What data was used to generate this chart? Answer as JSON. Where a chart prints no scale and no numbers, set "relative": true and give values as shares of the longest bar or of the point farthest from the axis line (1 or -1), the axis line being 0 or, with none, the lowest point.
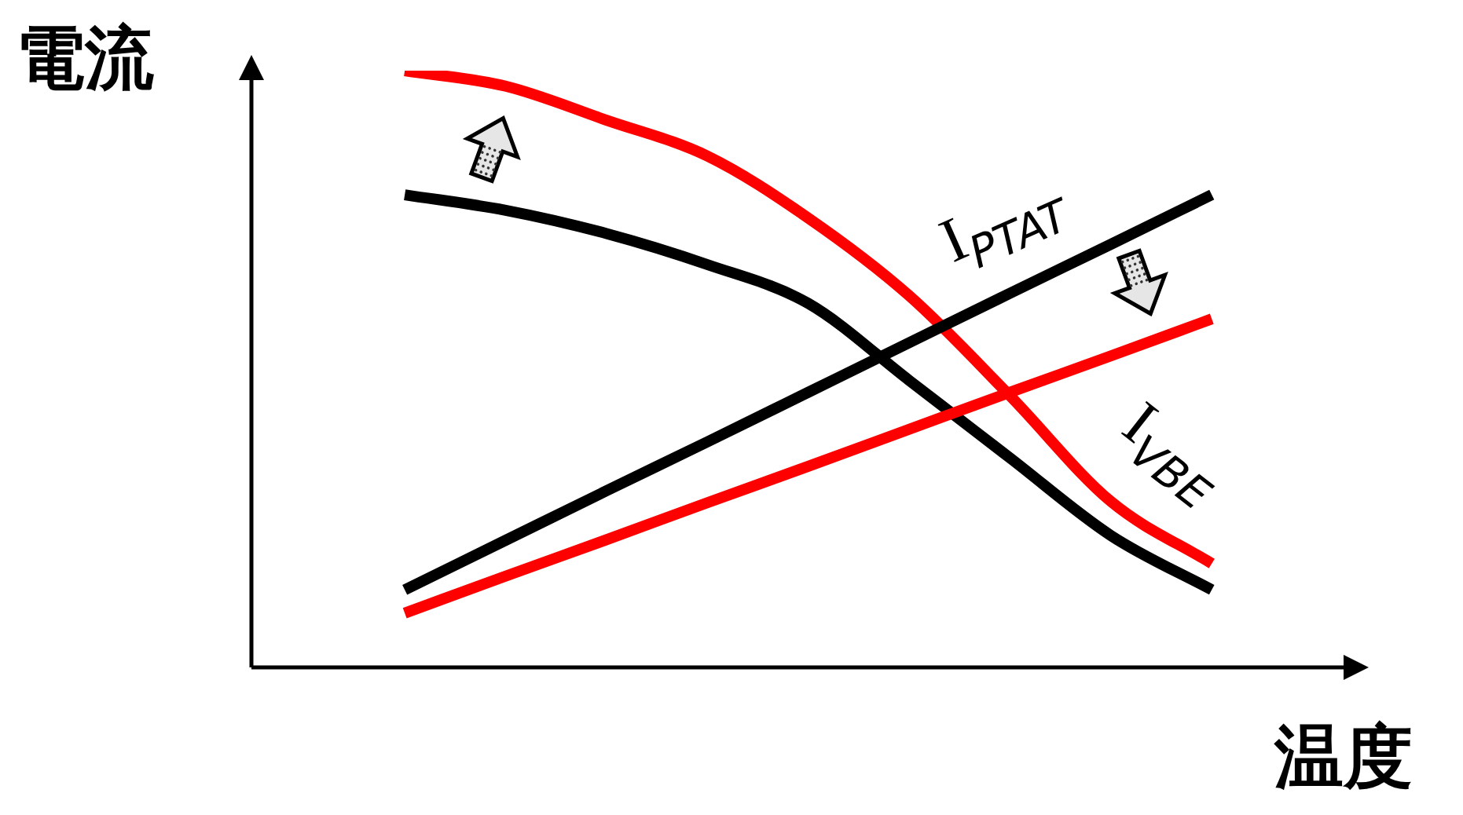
{
  "chart_data": {
    "type": "line",
    "xlabel": "温度",
    "ylabel": "電流",
    "relative": true,
    "grid": false,
    "marker": "none",
    "line_style": "solid",
    "categories": [
      null,
      null,
      null,
      null,
      null,
      null,
      null,
      null,
      null
    ],
    "series": [
      {
        "name": "I$_{PTAT}$",
        "color": "#000000",
        "values": [
          0.13,
          0.213,
          0.296,
          0.378,
          0.461,
          0.544,
          0.627,
          0.709,
          0.792
        ]
      },
      {
        "color": "#ff0000",
        "values": [
          0.091,
          0.153,
          0.214,
          0.276,
          0.337,
          0.399,
          0.461,
          0.522,
          0.584
        ]
      },
      {
        "name": "I$_{VBE}$",
        "color": "#000000",
        "values": [
          0.792,
          0.766,
          0.727,
          0.675,
          0.61,
          0.481,
          0.351,
          0.221,
          0.13
        ]
      },
      {
        "color": "#ff0000",
        "values": [
          1,
          0.974,
          0.917,
          0.857,
          0.753,
          0.623,
          0.455,
          0.278,
          0.174
        ]
      }
    ]
  }
}
